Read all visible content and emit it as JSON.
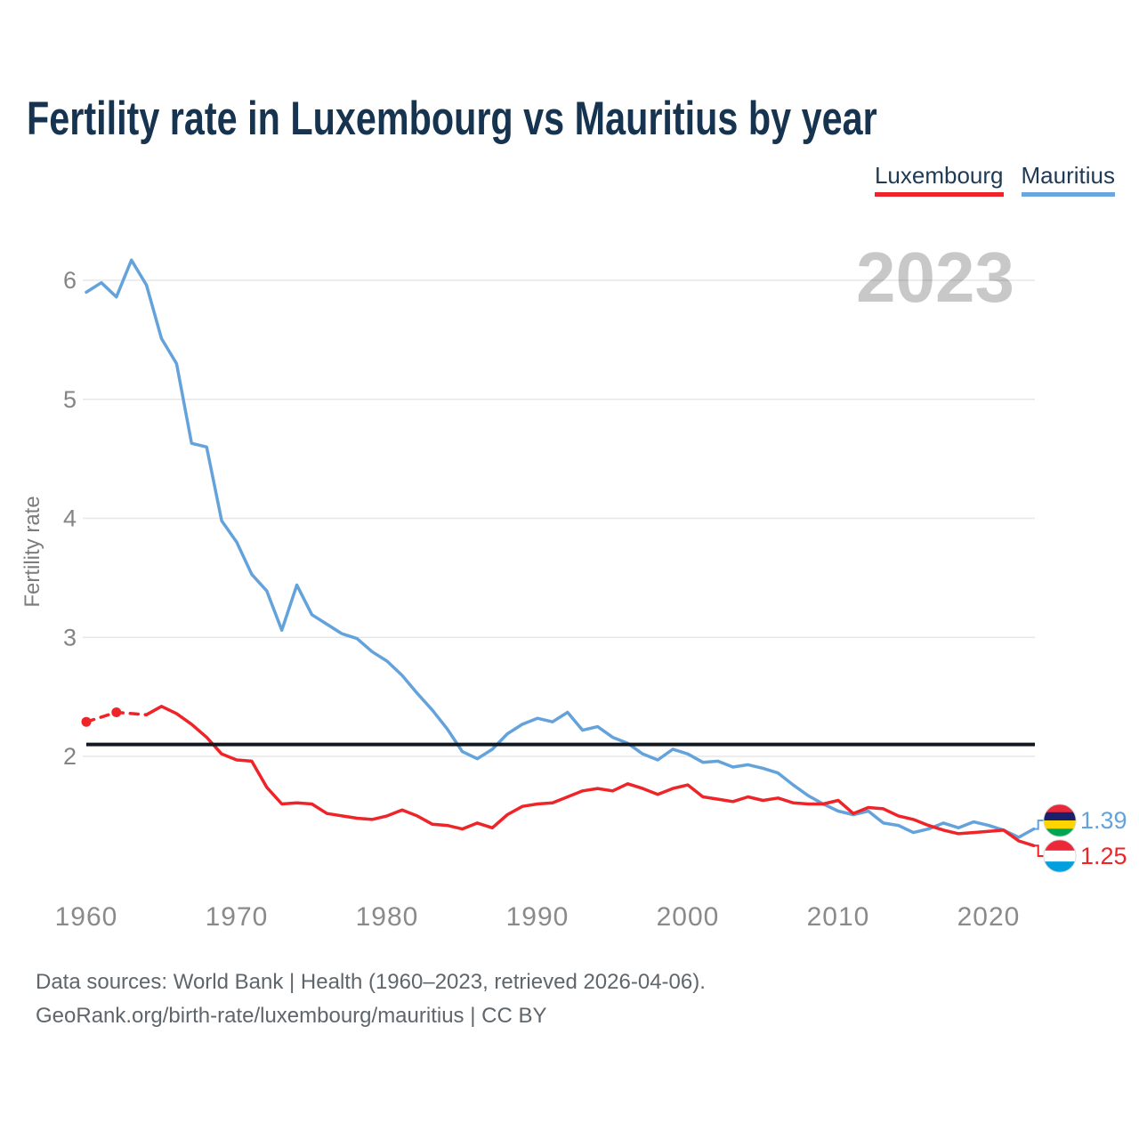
{
  "title": "Fertility rate in Luxembourg vs Mauritius by year",
  "legend": {
    "items": [
      {
        "label": "Luxembourg",
        "color": "#ee2428"
      },
      {
        "label": "Mauritius",
        "color": "#6ba6df"
      }
    ]
  },
  "watermark": "2023",
  "footer": {
    "line1": "Data sources: World Bank | Health (1960–2023, retrieved 2026-04-06).",
    "line2": "GeoRank.org/birth-rate/luxembourg/mauritius | CC BY"
  },
  "chart_data": {
    "type": "line",
    "title": "Fertility rate in Luxembourg vs Mauritius by year",
    "xlabel": "",
    "ylabel": "Fertility rate",
    "xlim": [
      1960,
      2023
    ],
    "ylim": [
      2,
      6
    ],
    "x_ticks": [
      1960,
      1970,
      1980,
      1990,
      2000,
      2010,
      2020
    ],
    "y_ticks": [
      2,
      3,
      4,
      5,
      6
    ],
    "grid": "horizontal",
    "legend_position": "top-right",
    "replacement_line": {
      "value": 2.1,
      "color": "#101820"
    },
    "series": [
      {
        "name": "Mauritius",
        "color": "#64a2dc",
        "end_label": "1.39",
        "flag_stripes": [
          "#EA2839",
          "#1A206D",
          "#FFD500",
          "#00A551"
        ],
        "points": [
          [
            1960,
            5.9
          ],
          [
            1961,
            5.98
          ],
          [
            1962,
            5.86
          ],
          [
            1963,
            6.17
          ],
          [
            1964,
            5.96
          ],
          [
            1965,
            5.51
          ],
          [
            1966,
            5.3
          ],
          [
            1967,
            4.63
          ],
          [
            1968,
            4.6
          ],
          [
            1969,
            3.98
          ],
          [
            1970,
            3.8
          ],
          [
            1971,
            3.53
          ],
          [
            1972,
            3.39
          ],
          [
            1973,
            3.06
          ],
          [
            1974,
            3.44
          ],
          [
            1975,
            3.19
          ],
          [
            1976,
            3.11
          ],
          [
            1977,
            3.03
          ],
          [
            1978,
            2.99
          ],
          [
            1979,
            2.88
          ],
          [
            1980,
            2.8
          ],
          [
            1981,
            2.68
          ],
          [
            1982,
            2.53
          ],
          [
            1983,
            2.39
          ],
          [
            1984,
            2.23
          ],
          [
            1985,
            2.04
          ],
          [
            1986,
            1.98
          ],
          [
            1987,
            2.06
          ],
          [
            1988,
            2.19
          ],
          [
            1989,
            2.27
          ],
          [
            1990,
            2.32
          ],
          [
            1991,
            2.29
          ],
          [
            1992,
            2.37
          ],
          [
            1993,
            2.22
          ],
          [
            1994,
            2.25
          ],
          [
            1995,
            2.16
          ],
          [
            1996,
            2.11
          ],
          [
            1997,
            2.02
          ],
          [
            1998,
            1.97
          ],
          [
            1999,
            2.06
          ],
          [
            2000,
            2.02
          ],
          [
            2001,
            1.95
          ],
          [
            2002,
            1.96
          ],
          [
            2003,
            1.91
          ],
          [
            2004,
            1.93
          ],
          [
            2005,
            1.9
          ],
          [
            2006,
            1.86
          ],
          [
            2007,
            1.76
          ],
          [
            2008,
            1.67
          ],
          [
            2009,
            1.6
          ],
          [
            2010,
            1.54
          ],
          [
            2011,
            1.51
          ],
          [
            2012,
            1.54
          ],
          [
            2013,
            1.44
          ],
          [
            2014,
            1.42
          ],
          [
            2015,
            1.36
          ],
          [
            2016,
            1.39
          ],
          [
            2017,
            1.44
          ],
          [
            2018,
            1.4
          ],
          [
            2019,
            1.45
          ],
          [
            2020,
            1.42
          ],
          [
            2021,
            1.38
          ],
          [
            2022,
            1.32
          ],
          [
            2023,
            1.39
          ]
        ]
      },
      {
        "name": "Luxembourg",
        "color": "#ee2428",
        "end_label": "1.25",
        "flag_stripes": [
          "#ED2939",
          "#FFFFFF",
          "#00A1DE"
        ],
        "dashed_until_year": 1964,
        "marker_years": [
          1960,
          1962
        ],
        "points": [
          [
            1960,
            2.29
          ],
          [
            1962,
            2.37
          ],
          [
            1964,
            2.35
          ],
          [
            1965,
            2.42
          ],
          [
            1966,
            2.36
          ],
          [
            1967,
            2.27
          ],
          [
            1968,
            2.16
          ],
          [
            1969,
            2.02
          ],
          [
            1970,
            1.97
          ],
          [
            1971,
            1.96
          ],
          [
            1972,
            1.74
          ],
          [
            1973,
            1.6
          ],
          [
            1974,
            1.61
          ],
          [
            1975,
            1.6
          ],
          [
            1976,
            1.52
          ],
          [
            1977,
            1.5
          ],
          [
            1978,
            1.48
          ],
          [
            1979,
            1.47
          ],
          [
            1980,
            1.5
          ],
          [
            1981,
            1.55
          ],
          [
            1982,
            1.5
          ],
          [
            1983,
            1.43
          ],
          [
            1984,
            1.42
          ],
          [
            1985,
            1.39
          ],
          [
            1986,
            1.44
          ],
          [
            1987,
            1.4
          ],
          [
            1988,
            1.51
          ],
          [
            1989,
            1.58
          ],
          [
            1990,
            1.6
          ],
          [
            1991,
            1.61
          ],
          [
            1992,
            1.66
          ],
          [
            1993,
            1.71
          ],
          [
            1994,
            1.73
          ],
          [
            1995,
            1.71
          ],
          [
            1996,
            1.77
          ],
          [
            1997,
            1.73
          ],
          [
            1998,
            1.68
          ],
          [
            1999,
            1.73
          ],
          [
            2000,
            1.76
          ],
          [
            2001,
            1.66
          ],
          [
            2002,
            1.64
          ],
          [
            2003,
            1.62
          ],
          [
            2004,
            1.66
          ],
          [
            2005,
            1.63
          ],
          [
            2006,
            1.65
          ],
          [
            2007,
            1.61
          ],
          [
            2008,
            1.6
          ],
          [
            2009,
            1.6
          ],
          [
            2010,
            1.63
          ],
          [
            2011,
            1.52
          ],
          [
            2012,
            1.57
          ],
          [
            2013,
            1.56
          ],
          [
            2014,
            1.5
          ],
          [
            2015,
            1.47
          ],
          [
            2016,
            1.42
          ],
          [
            2017,
            1.38
          ],
          [
            2018,
            1.35
          ],
          [
            2019,
            1.36
          ],
          [
            2020,
            1.37
          ],
          [
            2021,
            1.38
          ],
          [
            2022,
            1.29
          ],
          [
            2023,
            1.25
          ]
        ]
      }
    ]
  }
}
